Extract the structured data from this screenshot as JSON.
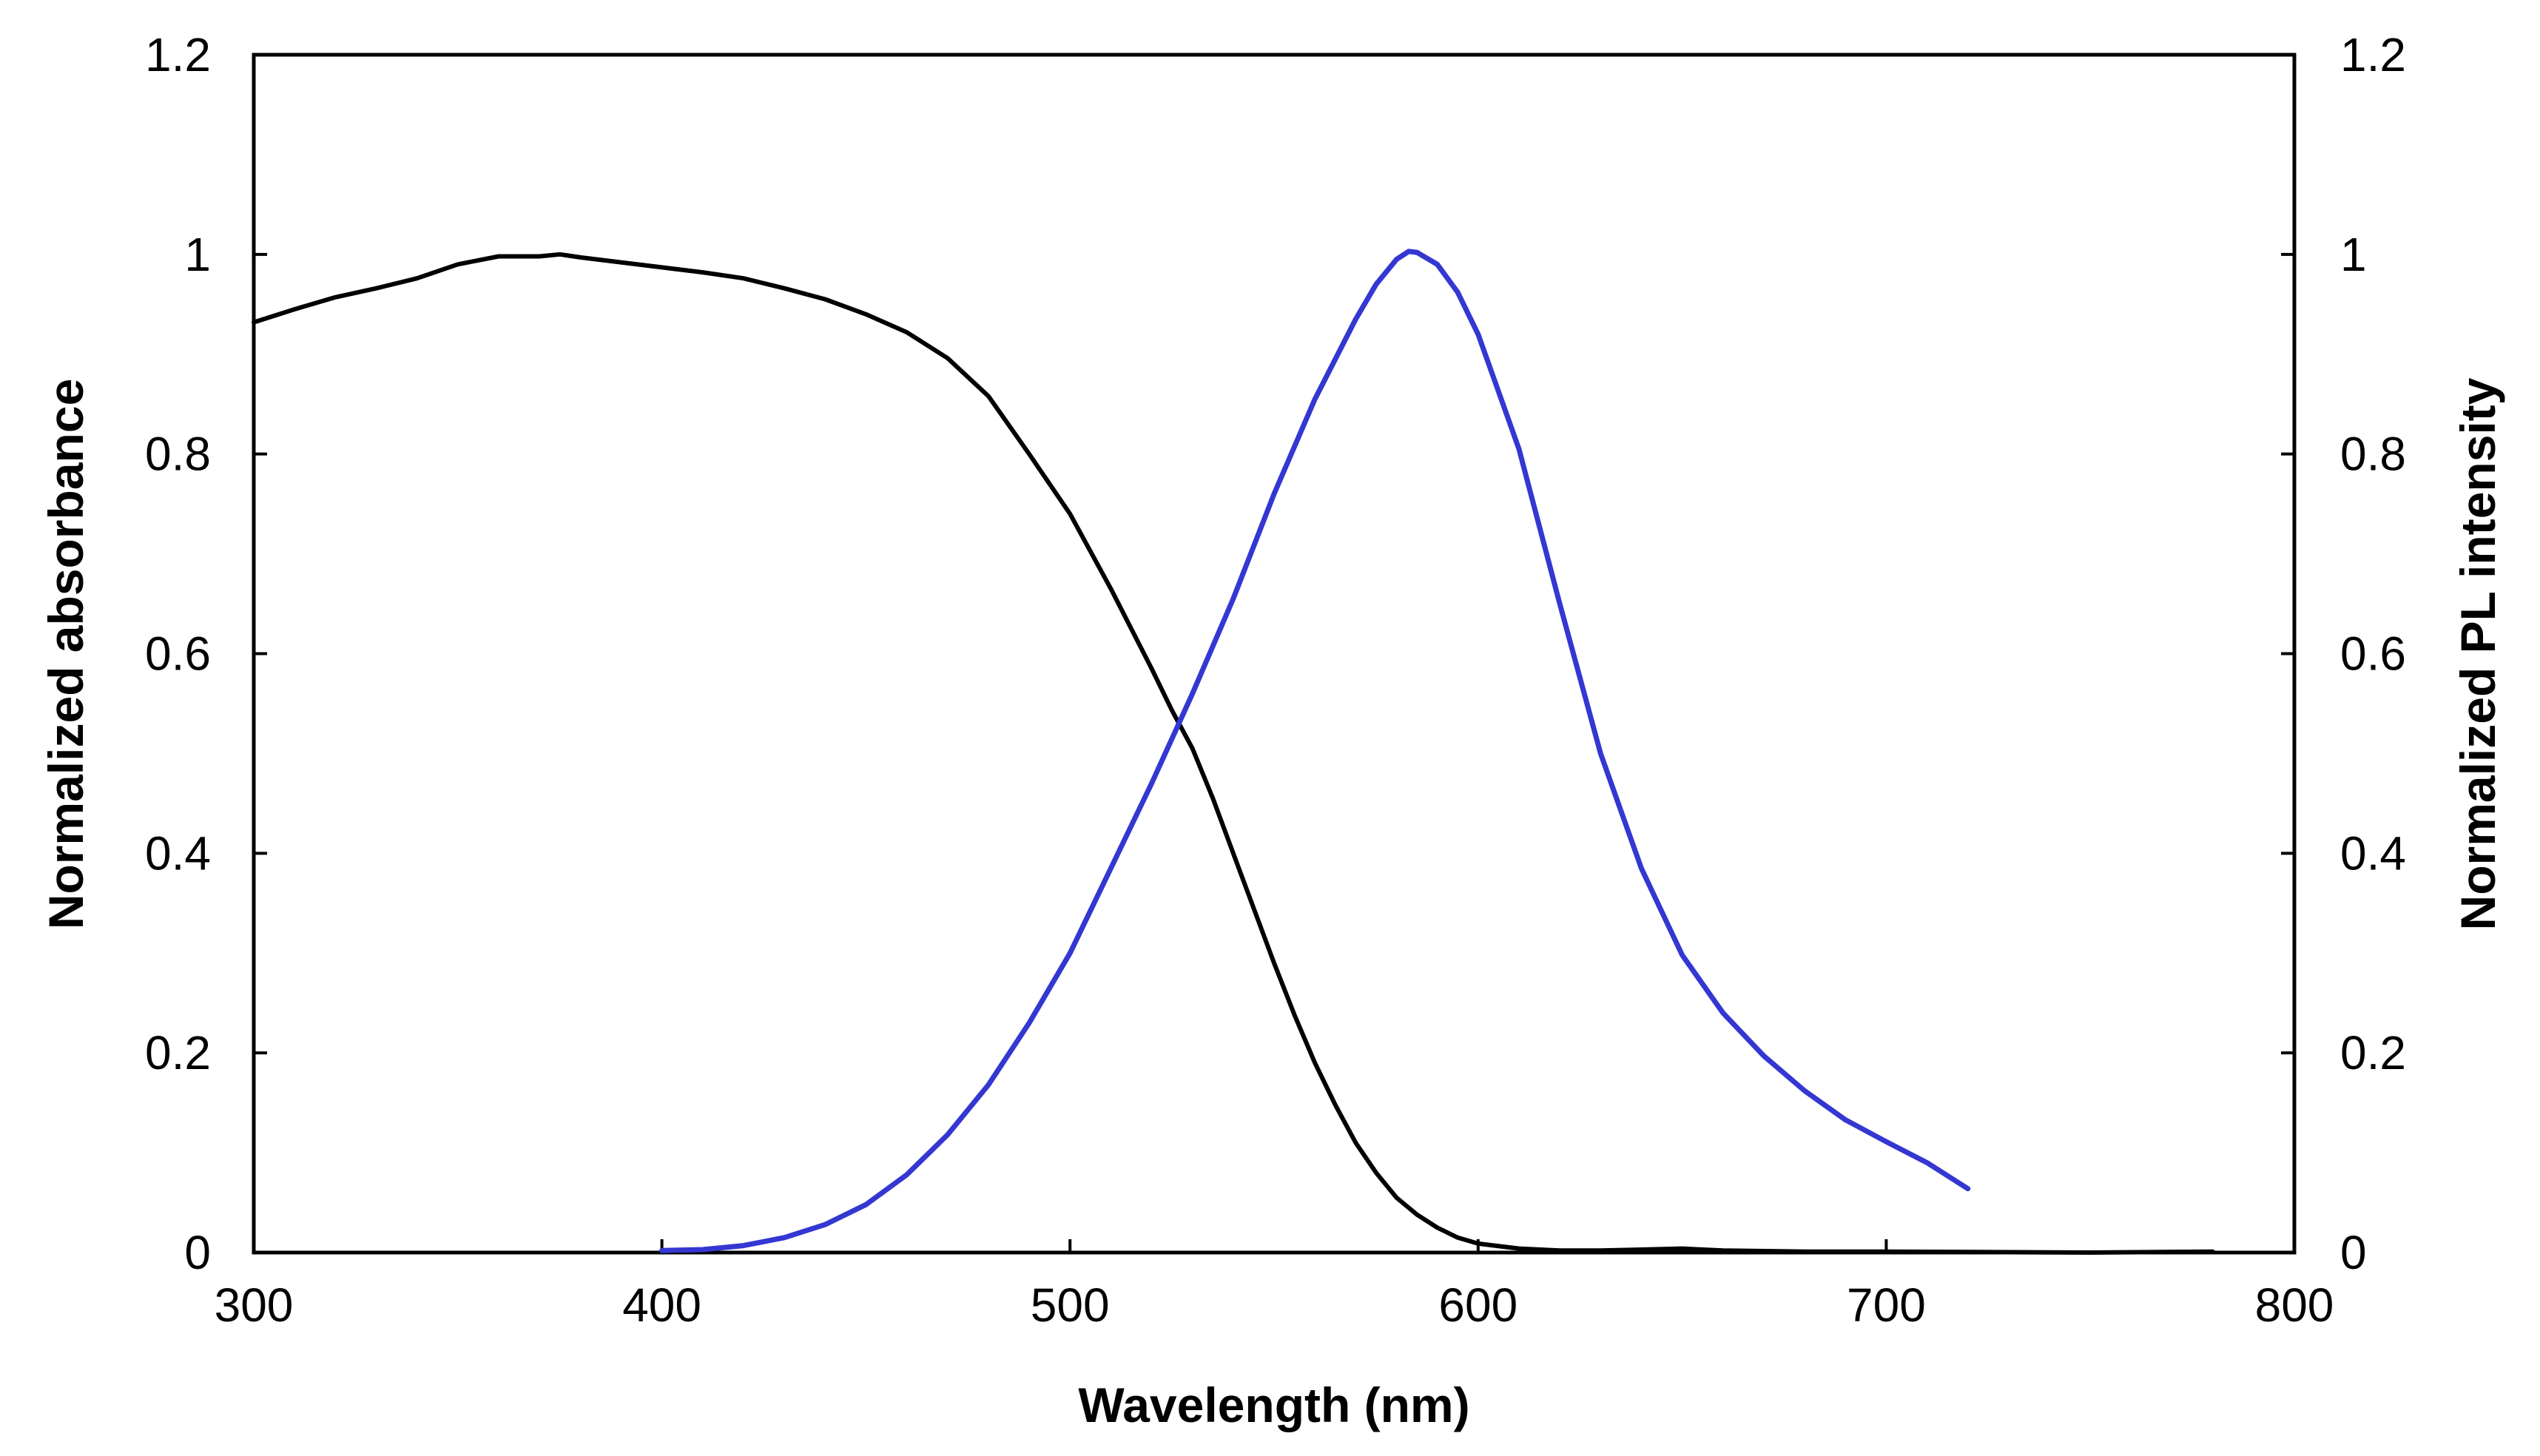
{
  "chart_data": {
    "type": "line",
    "title": "",
    "xlabel": "Wavelength (nm)",
    "ylabel": "Normalized absorbance",
    "y2label": "Normalized PL intensity",
    "xlim": [
      300,
      800
    ],
    "ylim": [
      0,
      1.2
    ],
    "y2lim": [
      0,
      1.2
    ],
    "x_ticks": [
      300,
      400,
      500,
      600,
      700,
      800
    ],
    "y_ticks": [
      0,
      0.2,
      0.4,
      0.6,
      0.8,
      1,
      1.2
    ],
    "y2_ticks": [
      0,
      0.2,
      0.4,
      0.6,
      0.8,
      1,
      1.2
    ],
    "x_tick_labels": [
      "300",
      "400",
      "500",
      "600",
      "700",
      "800"
    ],
    "y_tick_labels": [
      "0",
      "0.2",
      "0.4",
      "0.6",
      "0.8",
      "1",
      "1.2"
    ],
    "y2_tick_labels": [
      "0",
      "0.2",
      "0.4",
      "0.6",
      "0.8",
      "1",
      "1.2"
    ],
    "grid": false,
    "legend": "none",
    "series": [
      {
        "axis": "left",
        "color": "#000000",
        "x": [
          300,
          310,
          320,
          330,
          340,
          350,
          360,
          365,
          370,
          375,
          380,
          390,
          400,
          410,
          420,
          430,
          440,
          450,
          460,
          470,
          480,
          490,
          500,
          510,
          520,
          525,
          530,
          535,
          540,
          545,
          550,
          555,
          560,
          565,
          570,
          575,
          580,
          585,
          590,
          595,
          600,
          610,
          620,
          630,
          640,
          650,
          660,
          680,
          700,
          750,
          780
        ],
        "y": [
          0.932,
          0.945,
          0.957,
          0.966,
          0.976,
          0.99,
          0.998,
          0.998,
          0.998,
          1.0,
          0.997,
          0.992,
          0.987,
          0.982,
          0.976,
          0.966,
          0.955,
          0.94,
          0.922,
          0.896,
          0.858,
          0.8,
          0.74,
          0.665,
          0.585,
          0.543,
          0.505,
          0.455,
          0.4,
          0.345,
          0.29,
          0.238,
          0.19,
          0.148,
          0.11,
          0.08,
          0.055,
          0.038,
          0.025,
          0.015,
          0.009,
          0.004,
          0.002,
          0.002,
          0.003,
          0.004,
          0.002,
          0.001,
          0.001,
          0.0,
          0.001
        ]
      },
      {
        "axis": "right",
        "color": "#3437d1",
        "x": [
          400,
          410,
          420,
          430,
          440,
          450,
          460,
          470,
          480,
          490,
          500,
          510,
          520,
          530,
          540,
          550,
          560,
          570,
          575,
          580,
          583,
          585,
          590,
          595,
          600,
          610,
          620,
          630,
          640,
          650,
          660,
          670,
          680,
          690,
          700,
          710,
          720
        ],
        "y": [
          0.002,
          0.003,
          0.007,
          0.015,
          0.028,
          0.048,
          0.078,
          0.118,
          0.168,
          0.23,
          0.3,
          0.385,
          0.47,
          0.56,
          0.655,
          0.76,
          0.855,
          0.935,
          0.97,
          0.995,
          1.003,
          1.002,
          0.99,
          0.962,
          0.92,
          0.805,
          0.65,
          0.5,
          0.385,
          0.298,
          0.24,
          0.197,
          0.162,
          0.133,
          0.111,
          0.09,
          0.064
        ]
      }
    ]
  }
}
